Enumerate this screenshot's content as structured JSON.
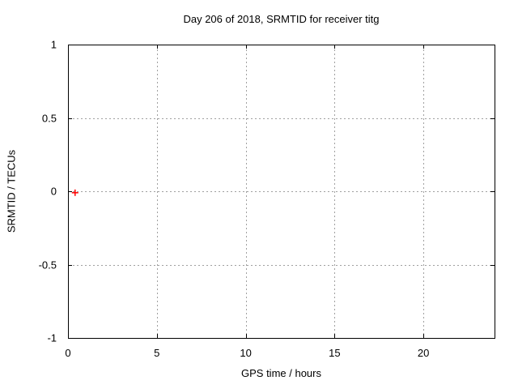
{
  "canvas": {
    "background": "#ffffff"
  },
  "chart_data": {
    "type": "scatter",
    "title": "Day 206 of 2018, SRMTID for receiver titg",
    "xlabel": "GPS time / hours",
    "ylabel": "SRMTID / TECUs",
    "xlim": [
      0,
      24
    ],
    "ylim": [
      -1,
      1
    ],
    "xticks": [
      0,
      5,
      10,
      15,
      20
    ],
    "yticks": [
      -1,
      -0.5,
      0,
      0.5,
      1
    ],
    "grid": true,
    "grid_style": "dashed",
    "legend_position": "none",
    "series": [
      {
        "name": "SRMTID",
        "marker": "plus",
        "color": "#ff0000",
        "points": [
          {
            "x": 0.4,
            "y": -0.01
          }
        ]
      }
    ],
    "colors": {
      "border": "#000000",
      "grid": "#a0a0a0",
      "text": "#000000",
      "marker": "#ff0000",
      "background": "#ffffff"
    }
  }
}
